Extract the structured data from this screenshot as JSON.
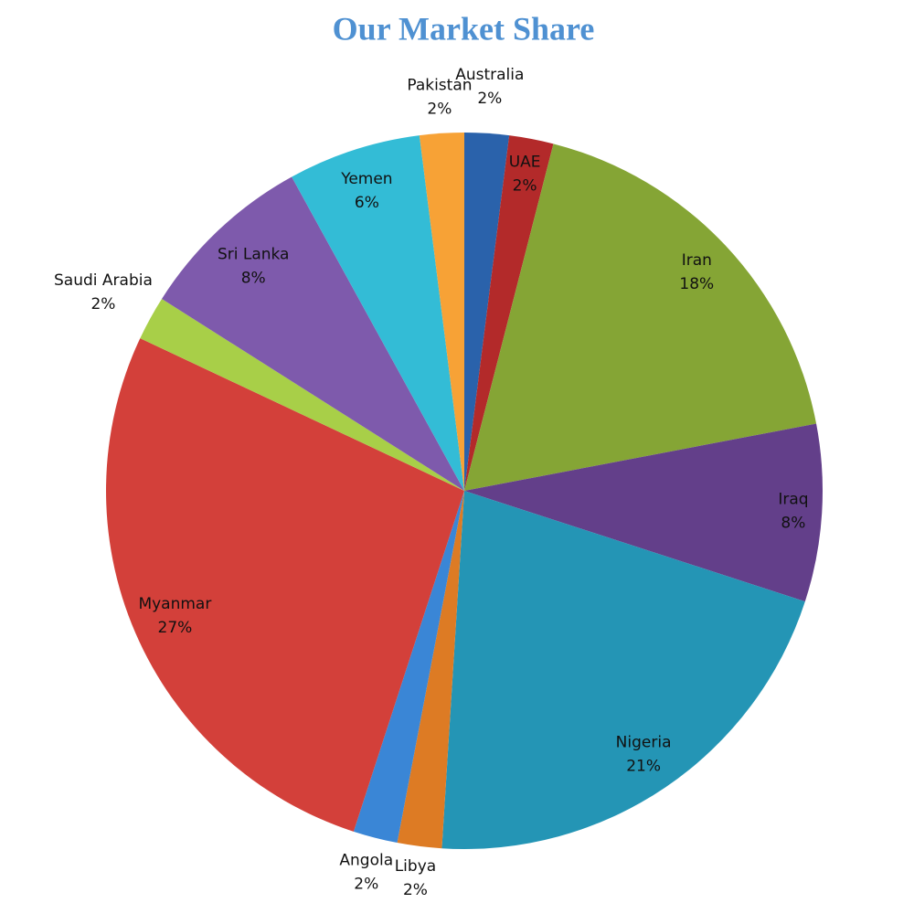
{
  "chart_data": {
    "type": "pie",
    "title": "Our Market Share",
    "categories": [
      "Australia",
      "UAE",
      "Iran",
      "Iraq",
      "Nigeria",
      "Libya",
      "Angola",
      "Myanmar",
      "Saudi Arabia",
      "Sri Lanka",
      "Yemen",
      "Pakistan"
    ],
    "values": [
      2,
      2,
      18,
      8,
      21,
      2,
      2,
      27,
      2,
      8,
      6,
      2
    ],
    "value_labels": [
      "2%",
      "2%",
      "18%",
      "8%",
      "21%",
      "2%",
      "2%",
      "27%",
      "2%",
      "8%",
      "6%",
      "2%"
    ],
    "colors": [
      "#2a62ab",
      "#b32a2a",
      "#85a535",
      "#633f8a",
      "#2495b5",
      "#dd7b24",
      "#3a86d6",
      "#d3403a",
      "#a8cf48",
      "#7e5aac",
      "#33bcd6",
      "#f7a236"
    ]
  }
}
